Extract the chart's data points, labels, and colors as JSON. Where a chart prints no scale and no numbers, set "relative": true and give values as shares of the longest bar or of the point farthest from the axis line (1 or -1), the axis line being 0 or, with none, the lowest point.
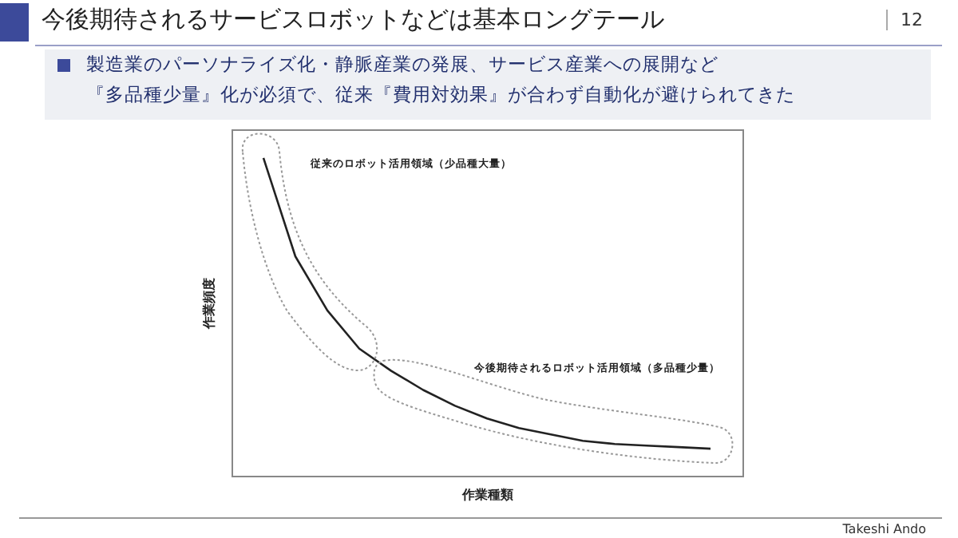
{
  "chart_data": {
    "type": "line",
    "relative": true,
    "title": "今後期待されるサービスロボットなどは基本ロングテール",
    "subtitle": "製造業のパーソナライズ化・静脈産業の発展、サービス産業への展開など『多品種少量』化が必須で、従来『費用対効果』が合わず自動化が避けられてきた",
    "xlabel": "作業種類",
    "ylabel": "作業頻度",
    "annotations": [
      "従来のロボット活用領域（少品種大量）",
      "今後期待されるロボット活用領域（多品種少量）",
      "12",
      "Takeshi Ando"
    ],
    "categories": [
      null,
      null,
      null,
      null,
      null,
      null,
      null,
      null,
      null,
      null,
      null,
      null,
      null,
      null,
      null
    ],
    "series": [
      {
        "color": "#222222",
        "values": [
          1,
          0.69,
          0.52,
          0.4,
          0.33,
          0.27,
          0.22,
          0.18,
          0.15,
          0.13,
          0.11,
          0.1,
          0.095,
          0.09,
          0.085
        ]
      }
    ],
    "grid": false,
    "marker": "none",
    "line_style": "solid"
  }
}
